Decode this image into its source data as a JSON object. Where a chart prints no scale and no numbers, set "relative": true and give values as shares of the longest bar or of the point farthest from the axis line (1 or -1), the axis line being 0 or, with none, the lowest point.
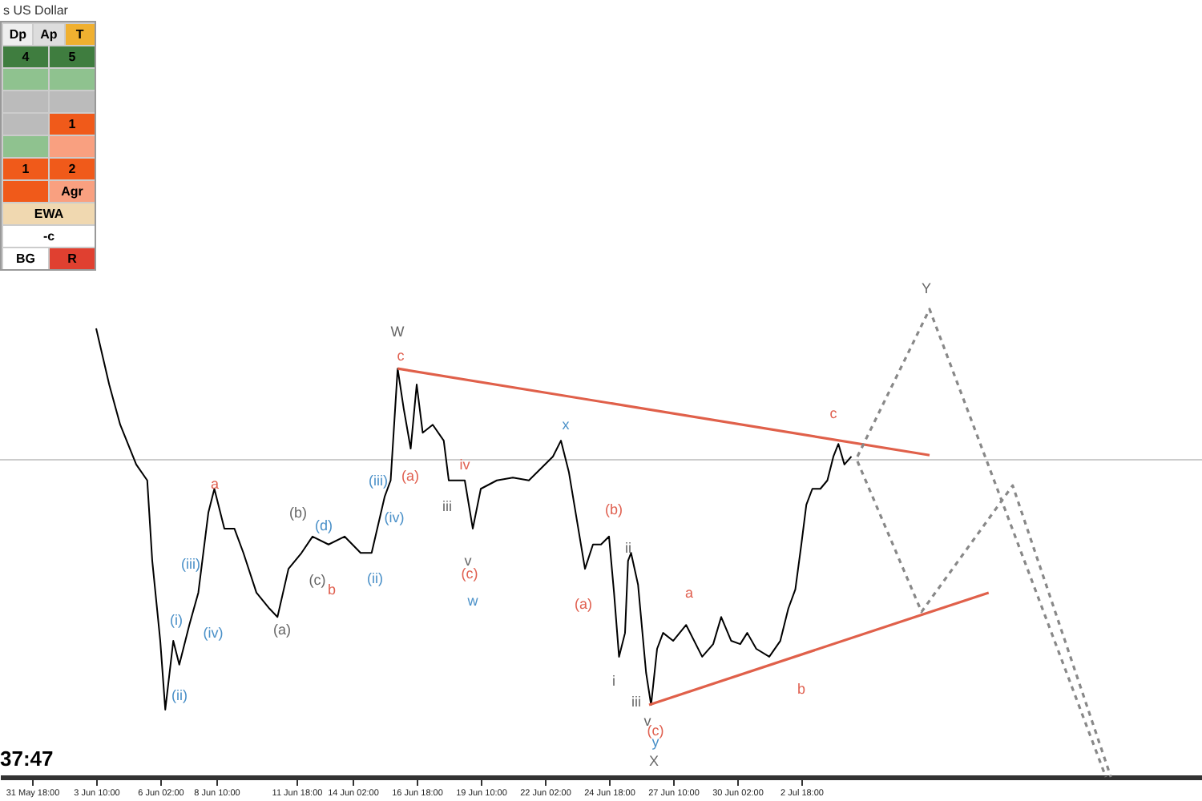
{
  "chart_data": {
    "type": "line",
    "title": "s US Dollar",
    "relative": true,
    "xlim": [
      "--05-30T10:00",
      "--07-19T10:00"
    ],
    "xticks": [
      {
        "value": "--05-31T18:00",
        "label": "31 May 18:00"
      },
      {
        "value": "--06-03T10:00",
        "label": "3 Jun 10:00"
      },
      {
        "value": "--06-06T02:00",
        "label": "6 Jun 02:00"
      },
      {
        "value": "--06-08T10:00",
        "label": "8 Jun 10:00"
      },
      {
        "value": "--06-11T18:00",
        "label": "11 Jun 18:00"
      },
      {
        "value": "--06-14T02:00",
        "label": "14 Jun 02:00"
      },
      {
        "value": "--06-16T18:00",
        "label": "16 Jun 18:00"
      },
      {
        "value": "--06-19T10:00",
        "label": "19 Jun 10:00"
      },
      {
        "value": "--06-22T02:00",
        "label": "22 Jun 02:00"
      },
      {
        "value": "--06-24T18:00",
        "label": "24 Jun 18:00"
      },
      {
        "value": "--06-27T10:00",
        "label": "27 Jun 10:00"
      },
      {
        "value": "--06-30T02:00",
        "label": "30 Jun 02:00"
      },
      {
        "value": "--07-02T18:00",
        "label": "2 Jul 18:00"
      }
    ],
    "series": [
      {
        "color": "#000000",
        "x": [
          "--06-03T10:00",
          "--06-03T23:00",
          "--06-04T10:00",
          "--06-05T02:00",
          "--06-05T13:00",
          "--06-05T18:00",
          "--06-06T02:00",
          "--06-06T07:00",
          "--06-06T15:00",
          "--06-06T21:00",
          "--06-07T07:00",
          "--06-07T16:00",
          "--06-08T02:00",
          "--06-08T08:00",
          "--06-08T18:00",
          "--06-09T04:00",
          "--06-09T13:00",
          "--06-10T02:00",
          "--06-10T15:00",
          "--06-10T23:00",
          "--06-11T10:00",
          "--06-11T23:00",
          "--06-12T10:00",
          "--06-13T02:00",
          "--06-13T18:00",
          "--06-14T10:00",
          "--06-14T21:00",
          "--06-15T10:00",
          "--06-15T16:00",
          "--06-15T23:00",
          "--06-16T05:00",
          "--06-16T12:00",
          "--06-16T18:00",
          "--06-17T00:00",
          "--06-17T10:00",
          "--06-17T21:00",
          "--06-18T02:00",
          "--06-18T18:00",
          "--06-19T02:00",
          "--06-19T10:00",
          "--06-20T02:00",
          "--06-20T18:00",
          "--06-21T10:00",
          "--06-22T10:00",
          "--06-22T18:00",
          "--06-23T02:00",
          "--06-23T18:00",
          "--06-24T02:00",
          "--06-24T10:00",
          "--06-24T18:00",
          "--06-24T23:00",
          "--06-25T04:00",
          "--06-25T10:00",
          "--06-25T13:00",
          "--06-25T16:00",
          "--06-25T23:00",
          "--06-26T07:00",
          "--06-26T12:00",
          "--06-26T18:00",
          "--06-27T00:00",
          "--06-27T10:00",
          "--06-27T23:00",
          "--06-28T15:00",
          "--06-29T02:00",
          "--06-29T10:00",
          "--06-29T20:00",
          "--06-30T05:00",
          "--06-30T12:00",
          "--06-30T21:00",
          "--07-01T10:00",
          "--07-01T21:00",
          "--07-02T05:00",
          "--07-02T12:00",
          "--07-02T18:00",
          "--07-02T23:00",
          "--07-03T05:00",
          "--07-03T13:00",
          "--07-03T20:00",
          "--07-04T02:00",
          "--07-04T07:00",
          "--07-04T13:00",
          "--07-04T20:00"
        ],
        "values": [
          0.959,
          0.839,
          0.753,
          0.668,
          0.634,
          0.462,
          0.291,
          0.144,
          0.291,
          0.24,
          0.325,
          0.394,
          0.565,
          0.616,
          0.531,
          0.531,
          0.479,
          0.394,
          0.36,
          0.342,
          0.445,
          0.479,
          0.514,
          0.497,
          0.514,
          0.479,
          0.479,
          0.599,
          0.634,
          0.873,
          0.788,
          0.702,
          0.839,
          0.736,
          0.753,
          0.719,
          0.634,
          0.634,
          0.531,
          0.616,
          0.634,
          0.64,
          0.634,
          0.685,
          0.719,
          0.651,
          0.445,
          0.497,
          0.497,
          0.514,
          0.394,
          0.257,
          0.308,
          0.462,
          0.479,
          0.411,
          0.223,
          0.154,
          0.274,
          0.308,
          0.291,
          0.325,
          0.257,
          0.284,
          0.342,
          0.291,
          0.284,
          0.308,
          0.274,
          0.257,
          0.291,
          0.36,
          0.401,
          0.497,
          0.582,
          0.616,
          0.616,
          0.634,
          0.685,
          0.712,
          0.668,
          0.685
        ]
      },
      {
        "color": "#e0604a",
        "x": [
          "--06-15T23:00",
          "--07-08T02:00"
        ],
        "values": [
          0.873,
          0.688
        ]
      },
      {
        "color": "#e0604a",
        "x": [
          "--06-26T10:00",
          "--07-10T13:00"
        ],
        "values": [
          0.154,
          0.394
        ]
      },
      {
        "color": "#888888",
        "line_style": "dashed",
        "x": [
          "--07-05T02:00",
          "--07-08T02:00",
          "--07-15T10:00"
        ],
        "values": [
          0.685,
          1,
          0
        ]
      },
      {
        "color": "#888888",
        "line_style": "dashed",
        "x": [
          "--07-05T02:00",
          "--07-07T18:00",
          "--07-11T13:00",
          "--07-15T15:00"
        ],
        "values": [
          0.675,
          0.353,
          0.623,
          0
        ]
      }
    ],
    "ref_lines": [
      {
        "axis": "y",
        "value": 0.678,
        "color": "#cccccc"
      }
    ],
    "annotations": [
      "W",
      "c",
      "a",
      "(b)",
      "(d)",
      "(c)",
      "b",
      "(a)",
      "(i)",
      "(iii)",
      "(iv)",
      "(ii)",
      "(ii)",
      "(iii)",
      "(iv)",
      "(a)",
      "iii",
      "iv",
      "v",
      "(c)",
      "w",
      "x",
      "(b)",
      "(a)",
      "i",
      "ii",
      "iii",
      "v",
      "(c)",
      "y",
      "X",
      "a",
      "b",
      "c",
      "Y",
      "Dp",
      "Ap",
      "T",
      "4",
      "5",
      "1",
      "1",
      "2",
      "Agr",
      "EWA",
      "-c",
      "BG",
      "R",
      "37:47"
    ]
  }
}
